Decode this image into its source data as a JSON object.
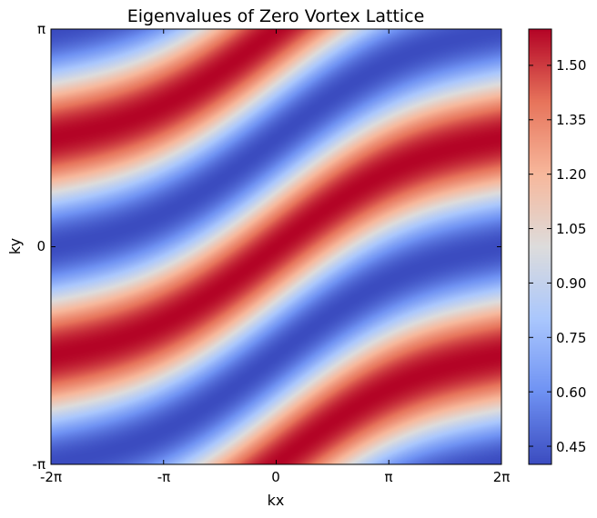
{
  "chart_data": {
    "type": "heatmap",
    "title": "Eigenvalues of Zero Vortex Lattice",
    "xlabel": "kx",
    "ylabel": "ky",
    "xlim": [
      -6.2832,
      6.2832
    ],
    "ylim": [
      -3.1416,
      3.1416
    ],
    "x_ticks": [
      {
        "value": -6.2832,
        "label": "-2π"
      },
      {
        "value": -3.1416,
        "label": "-π"
      },
      {
        "value": 0,
        "label": "0"
      },
      {
        "value": 3.1416,
        "label": "π"
      },
      {
        "value": 6.2832,
        "label": "2π"
      }
    ],
    "y_ticks": [
      {
        "value": -3.1416,
        "label": "-π"
      },
      {
        "value": 0,
        "label": "0"
      },
      {
        "value": 3.1416,
        "label": "π"
      }
    ],
    "colormap": "coolwarm",
    "colormap_stops": [
      "#3b4cc0",
      "#6f92f3",
      "#aac7fd",
      "#dddcdc",
      "#f7b89c",
      "#e7745b",
      "#b40426"
    ],
    "colorbar": {
      "vmin": 0.4,
      "vmax": 1.6,
      "ticks": [
        0.45,
        0.6,
        0.75,
        0.9,
        1.05,
        1.2,
        1.35,
        1.5
      ],
      "tick_labels": [
        "0.45",
        "0.60",
        "0.75",
        "0.90",
        "1.05",
        "1.20",
        "1.35",
        "1.50"
      ]
    },
    "features": {
      "maxima": [
        {
          "kx": 0,
          "ky": 0,
          "value": 1.6
        },
        {
          "kx": -6.2832,
          "ky": 1.5708,
          "value": 1.6
        },
        {
          "kx": -6.2832,
          "ky": -1.5708,
          "value": 1.6
        },
        {
          "kx": 6.2832,
          "ky": 1.5708,
          "value": 1.6
        },
        {
          "kx": 6.2832,
          "ky": -1.5708,
          "value": 1.6
        },
        {
          "kx": 0,
          "ky": 3.1416,
          "value": 1.6
        },
        {
          "kx": 0,
          "ky": -3.1416,
          "value": 1.6
        }
      ],
      "minima": [
        {
          "kx": -3.1416,
          "ky": 1.5708,
          "value": 0.4
        },
        {
          "kx": 3.1416,
          "ky": -1.5708,
          "value": 0.4
        },
        {
          "kx": 2.5,
          "ky": 2.7,
          "value": 0.4
        },
        {
          "kx": -2.5,
          "ky": -2.7,
          "value": 0.4
        }
      ]
    }
  }
}
